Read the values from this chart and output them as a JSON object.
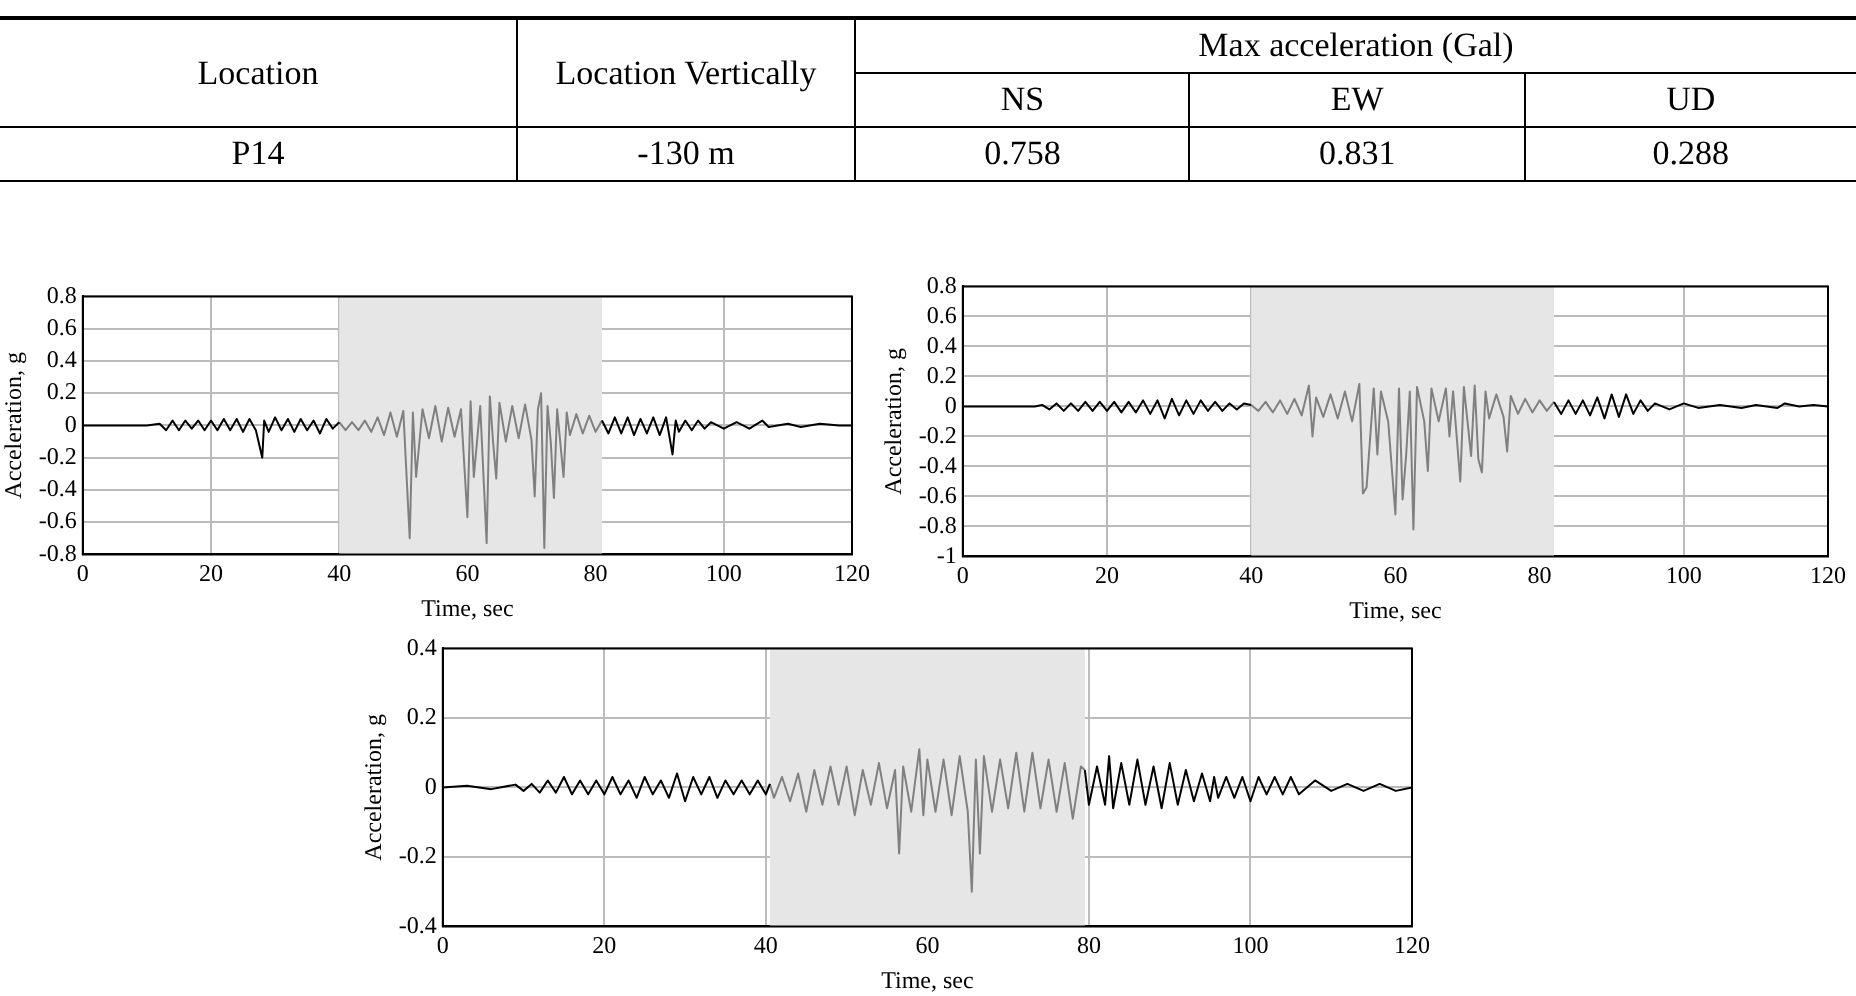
{
  "chart_data": [
    {
      "type": "other",
      "annotations": [
        "Location",
        "Location Vertically",
        "Max acceleration (Gal)",
        "NS",
        "EW",
        "UD",
        "P14",
        "-130 m",
        "0.758",
        "0.831",
        "0.288"
      ]
    },
    {
      "type": "line",
      "xlabel": "Time, sec",
      "ylabel": "Acceleration, g",
      "xlim": [
        0,
        120
      ],
      "xticks": [
        0,
        20,
        40,
        60,
        80,
        100,
        120
      ],
      "ylim": [
        -0.8,
        0.8
      ],
      "yticks": [
        -0.8,
        -0.6,
        -0.4,
        -0.2,
        0,
        0.2,
        0.4,
        0.6,
        0.8
      ],
      "grid": true,
      "marker": "none",
      "line_style": "solid",
      "bands": [
        {
          "axis": "x",
          "from": 40,
          "to": 81,
          "color": "#e6e6e6"
        }
      ],
      "series": [
        {
          "color": "#000000",
          "x": [
            0,
            5,
            10,
            12,
            13,
            14,
            15,
            16,
            17,
            18,
            19,
            20,
            21,
            22,
            23,
            24,
            25,
            26,
            27,
            28,
            28.3,
            29,
            30,
            31,
            32,
            33,
            34,
            35,
            36,
            37,
            38,
            39,
            40,
            60,
            81,
            82,
            83,
            84,
            85,
            86,
            87,
            88,
            89,
            90,
            91,
            92,
            92.5,
            93,
            94,
            95,
            96,
            97,
            98,
            100,
            102,
            104,
            106,
            107,
            110,
            112,
            115,
            118,
            120
          ],
          "values": [
            0,
            0,
            0,
            0.01,
            -0.03,
            0.03,
            -0.03,
            0.03,
            -0.02,
            0.03,
            -0.03,
            0.03,
            -0.03,
            0.04,
            -0.03,
            0.04,
            -0.04,
            0.04,
            -0.03,
            -0.2,
            0.03,
            -0.04,
            0.05,
            -0.03,
            0.04,
            -0.04,
            0.04,
            -0.03,
            0.03,
            -0.05,
            0.04,
            -0.02,
            0.02,
            null,
            0.03,
            -0.05,
            0.05,
            -0.05,
            0.05,
            -0.06,
            0.04,
            -0.05,
            0.05,
            -0.06,
            0.05,
            -0.18,
            0.03,
            -0.04,
            0.03,
            -0.03,
            0.03,
            -0.02,
            0.02,
            -0.02,
            0.02,
            -0.02,
            0.03,
            -0.01,
            0.01,
            -0.01,
            0.01,
            0,
            0
          ]
        },
        {
          "color": "#808080",
          "x": [
            40,
            41,
            42,
            43,
            44,
            45,
            46,
            47,
            48,
            49,
            50,
            51,
            51.5,
            52,
            53,
            54,
            55,
            56,
            57,
            58,
            59,
            60,
            60.5,
            61,
            62,
            63,
            63.5,
            64,
            64.5,
            65,
            66,
            67,
            68,
            69,
            70,
            70.5,
            71,
            71.5,
            72,
            72.5,
            73,
            73.5,
            74,
            75,
            75.5,
            76,
            77,
            78,
            79,
            80,
            81
          ],
          "values": [
            0.02,
            -0.03,
            0.02,
            -0.03,
            0.03,
            -0.04,
            0.05,
            -0.06,
            0.08,
            -0.07,
            0.09,
            -0.7,
            0.08,
            -0.32,
            0.1,
            -0.08,
            0.12,
            -0.1,
            0.11,
            -0.07,
            0.1,
            -0.57,
            0.15,
            -0.32,
            0.12,
            -0.73,
            0.18,
            -0.1,
            -0.33,
            0.14,
            -0.1,
            0.12,
            -0.08,
            0.13,
            -0.09,
            -0.44,
            0.1,
            0.2,
            -0.76,
            0.12,
            -0.1,
            -0.45,
            0.1,
            -0.32,
            0.08,
            -0.06,
            0.07,
            -0.05,
            0.06,
            -0.04,
            0.03
          ]
        }
      ]
    },
    {
      "type": "line",
      "xlabel": "Time, sec",
      "ylabel": "Acceleration, g",
      "xlim": [
        0,
        120
      ],
      "xticks": [
        0,
        20,
        40,
        60,
        80,
        100,
        120
      ],
      "ylim": [
        -1,
        0.8
      ],
      "yticks": [
        -1,
        -0.8,
        -0.6,
        -0.4,
        -0.2,
        0,
        0.2,
        0.4,
        0.6,
        0.8
      ],
      "grid": true,
      "marker": "none",
      "line_style": "solid",
      "bands": [
        {
          "axis": "x",
          "from": 40,
          "to": 82,
          "color": "#e6e6e6"
        }
      ],
      "series": [
        {
          "color": "#000000",
          "x": [
            0,
            10,
            11,
            12,
            13,
            14,
            15,
            16,
            17,
            18,
            19,
            20,
            21,
            22,
            23,
            24,
            25,
            26,
            27,
            28,
            29,
            30,
            31,
            32,
            33,
            34,
            35,
            36,
            37,
            38,
            39,
            40,
            61,
            82,
            83,
            84,
            85,
            86,
            87,
            88,
            89,
            90,
            91,
            92,
            93,
            94,
            95,
            96,
            98,
            100,
            102,
            105,
            108,
            110,
            113,
            114,
            116,
            118,
            120
          ],
          "values": [
            0,
            0,
            0.01,
            -0.02,
            0.02,
            -0.03,
            0.02,
            -0.03,
            0.03,
            -0.03,
            0.03,
            -0.03,
            0.03,
            -0.04,
            0.03,
            -0.04,
            0.04,
            -0.05,
            0.04,
            -0.08,
            0.05,
            -0.06,
            0.04,
            -0.05,
            0.04,
            -0.03,
            0.03,
            -0.03,
            0.02,
            -0.02,
            0.02,
            0.01,
            null,
            0.03,
            -0.05,
            0.04,
            -0.05,
            0.04,
            -0.06,
            0.06,
            -0.08,
            0.08,
            -0.07,
            0.08,
            -0.05,
            0.04,
            -0.03,
            0.02,
            -0.02,
            0.02,
            -0.01,
            0.01,
            -0.01,
            0.01,
            -0.01,
            0.02,
            0,
            0.01,
            0
          ]
        },
        {
          "color": "#808080",
          "x": [
            40,
            41,
            42,
            43,
            44,
            45,
            46,
            47,
            48,
            48.5,
            49,
            50,
            51,
            52,
            53,
            54,
            55,
            55.5,
            56,
            57,
            57.5,
            58,
            59,
            60,
            60.5,
            61,
            61.5,
            62,
            62.5,
            63,
            64,
            64.5,
            65,
            66,
            67,
            67.5,
            68,
            69,
            69.5,
            70,
            70.5,
            71,
            71.5,
            72,
            72.5,
            73,
            74,
            75,
            75.5,
            76,
            77,
            78,
            79,
            80,
            81,
            82
          ],
          "values": [
            0.01,
            -0.03,
            0.03,
            -0.04,
            0.04,
            -0.05,
            0.05,
            -0.06,
            0.14,
            -0.2,
            0.06,
            -0.07,
            0.08,
            -0.08,
            0.1,
            -0.1,
            0.15,
            -0.58,
            -0.54,
            0.12,
            -0.32,
            0.1,
            -0.1,
            -0.72,
            0.12,
            -0.62,
            -0.32,
            0.1,
            -0.82,
            0.13,
            -0.1,
            -0.43,
            0.12,
            -0.1,
            0.12,
            -0.2,
            0.1,
            -0.5,
            0.13,
            -0.1,
            -0.33,
            0.14,
            -0.35,
            -0.44,
            0.1,
            -0.08,
            0.08,
            -0.07,
            -0.3,
            0.07,
            -0.05,
            0.05,
            -0.04,
            0.04,
            -0.03,
            0.03
          ]
        }
      ]
    },
    {
      "type": "line",
      "xlabel": "Time, sec",
      "ylabel": "Acceleration, g",
      "xlim": [
        0,
        120
      ],
      "xticks": [
        0,
        20,
        40,
        60,
        80,
        100,
        120
      ],
      "ylim": [
        -0.4,
        0.4
      ],
      "yticks": [
        -0.4,
        -0.2,
        0,
        0.2,
        0.4
      ],
      "grid": true,
      "marker": "none",
      "line_style": "solid",
      "bands": [
        {
          "axis": "x",
          "from": 40.5,
          "to": 79.5,
          "color": "#e6e6e6"
        }
      ],
      "series": [
        {
          "color": "#000000",
          "x": [
            0,
            3,
            6,
            9,
            10,
            11,
            12,
            13,
            14,
            15,
            16,
            17,
            18,
            19,
            20,
            21,
            22,
            23,
            24,
            25,
            26,
            27,
            28,
            29,
            30,
            31,
            32,
            33,
            34,
            35,
            36,
            37,
            38,
            39,
            40,
            40.5,
            60,
            79.5,
            80,
            81,
            82,
            82.5,
            83,
            84,
            85,
            86,
            87,
            88,
            89,
            90,
            91,
            92,
            93,
            94,
            95,
            95.5,
            96,
            97,
            98,
            99,
            100,
            101,
            102,
            103,
            104,
            105,
            106,
            108,
            110,
            112,
            114,
            116,
            118,
            120
          ],
          "values": [
            0,
            0.005,
            -0.005,
            0.008,
            -0.01,
            0.01,
            -0.015,
            0.02,
            -0.015,
            0.03,
            -0.02,
            0.02,
            -0.02,
            0.02,
            -0.02,
            0.03,
            -0.02,
            0.02,
            -0.03,
            0.03,
            -0.02,
            0.02,
            -0.03,
            0.04,
            -0.04,
            0.03,
            -0.02,
            0.03,
            -0.03,
            0.02,
            -0.02,
            0.02,
            -0.02,
            0.02,
            -0.02,
            0.01,
            null,
            0.05,
            -0.05,
            0.06,
            -0.05,
            0.09,
            -0.06,
            0.07,
            -0.05,
            0.08,
            -0.05,
            0.06,
            -0.06,
            0.07,
            -0.05,
            0.05,
            -0.04,
            0.04,
            -0.04,
            0.03,
            -0.03,
            0.03,
            -0.03,
            0.03,
            -0.04,
            0.03,
            -0.02,
            0.03,
            -0.02,
            0.03,
            -0.02,
            0.02,
            -0.01,
            0.01,
            -0.01,
            0.01,
            -0.01,
            0
          ]
        },
        {
          "color": "#808080",
          "x": [
            40.5,
            41,
            42,
            43,
            44,
            45,
            46,
            47,
            48,
            49,
            50,
            51,
            52,
            53,
            54,
            55,
            56,
            56.5,
            57,
            58,
            59,
            59.5,
            60,
            61,
            62,
            63,
            64,
            65,
            65.5,
            66,
            66.5,
            67,
            68,
            69,
            70,
            71,
            72,
            73,
            74,
            75,
            76,
            77,
            78,
            79,
            79.5
          ],
          "values": [
            0.01,
            -0.03,
            0.03,
            -0.04,
            0.04,
            -0.07,
            0.05,
            -0.05,
            0.06,
            -0.05,
            0.06,
            -0.08,
            0.05,
            -0.05,
            0.07,
            -0.06,
            0.05,
            -0.19,
            0.06,
            -0.07,
            0.11,
            -0.08,
            0.08,
            -0.07,
            0.08,
            -0.08,
            0.09,
            -0.07,
            -0.3,
            0.08,
            -0.19,
            0.09,
            -0.07,
            0.08,
            -0.06,
            0.1,
            -0.07,
            0.1,
            -0.06,
            0.08,
            -0.07,
            0.07,
            -0.09,
            0.06,
            0.05
          ]
        }
      ]
    }
  ]
}
